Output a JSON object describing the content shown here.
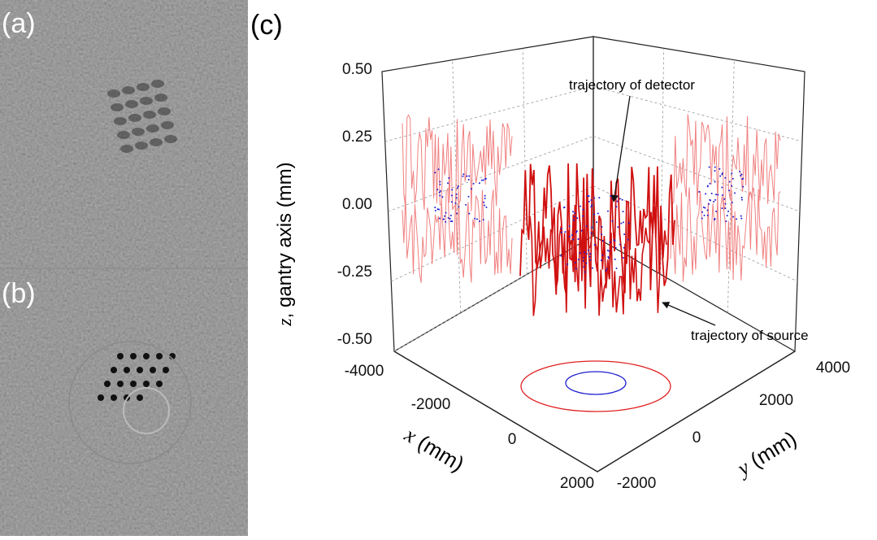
{
  "panels": [
    {
      "label": "(a)"
    },
    {
      "label": "(b)"
    },
    {
      "label": "(c)"
    }
  ],
  "plot": {
    "z_axis": {
      "var": "z",
      "text": ", gantry axis (mm)",
      "ticks": [
        "0.50",
        "0.25",
        "0.00",
        "-0.25",
        "-0.50"
      ]
    },
    "x_axis": {
      "var": "x",
      "text": " (mm)",
      "ticks": [
        "-4000",
        "-2000",
        "0",
        "2000"
      ]
    },
    "y_axis": {
      "var": "y",
      "text": " (mm)",
      "ticks": [
        "-2000",
        "0",
        "2000",
        "4000"
      ]
    },
    "annotations": [
      "trajectory of detector",
      "trajectory of source"
    ]
  }
}
